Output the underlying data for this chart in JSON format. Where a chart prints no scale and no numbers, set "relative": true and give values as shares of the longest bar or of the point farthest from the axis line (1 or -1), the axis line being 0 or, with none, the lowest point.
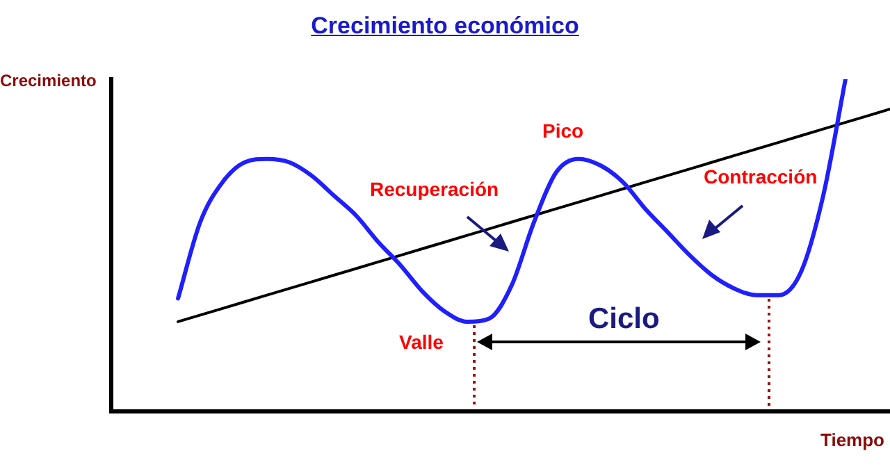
{
  "chart_data": {
    "type": "line",
    "title": "Crecimiento económico",
    "xlabel": "Tiempo",
    "ylabel": "Crecimiento",
    "relative": true,
    "grid": false,
    "legend": false,
    "marker": "none",
    "line_style": "solid",
    "annotations": [
      "Pico",
      "Recuperación",
      "Contracción",
      "Valle",
      "Ciclo"
    ],
    "categories": [
      null,
      null,
      null,
      null,
      null,
      null,
      null,
      null,
      null,
      null,
      null,
      null,
      null,
      null,
      null,
      null,
      null,
      null,
      null,
      null,
      null,
      null,
      null,
      null,
      null,
      null,
      null,
      null,
      null,
      null,
      null,
      null,
      null,
      null,
      null,
      null
    ],
    "series": [
      {
        "color": "#1f1fff",
        "values": [
          null,
          null,
          null,
          0.34,
          0.57,
          0.69,
          0.75,
          0.76,
          0.75,
          0.71,
          0.65,
          0.59,
          0.51,
          0.44,
          0.36,
          0.3,
          0.27,
          0.28,
          0.38,
          0.57,
          0.72,
          0.76,
          0.74,
          0.69,
          0.61,
          0.54,
          0.47,
          0.41,
          0.37,
          0.35,
          0.35,
          0.42,
          0.65,
          1.0,
          null,
          null
        ]
      },
      {
        "color": "#000000",
        "values": [
          null,
          null,
          null,
          0.27,
          0.29,
          0.31,
          0.33,
          0.35,
          0.37,
          0.39,
          0.41,
          0.43,
          0.45,
          0.47,
          0.49,
          0.51,
          0.53,
          0.55,
          0.57,
          0.59,
          0.61,
          0.63,
          0.65,
          0.67,
          0.69,
          0.71,
          0.73,
          0.75,
          0.77,
          0.79,
          0.81,
          0.83,
          0.85,
          0.87,
          0.89,
          0.91
        ]
      }
    ]
  }
}
